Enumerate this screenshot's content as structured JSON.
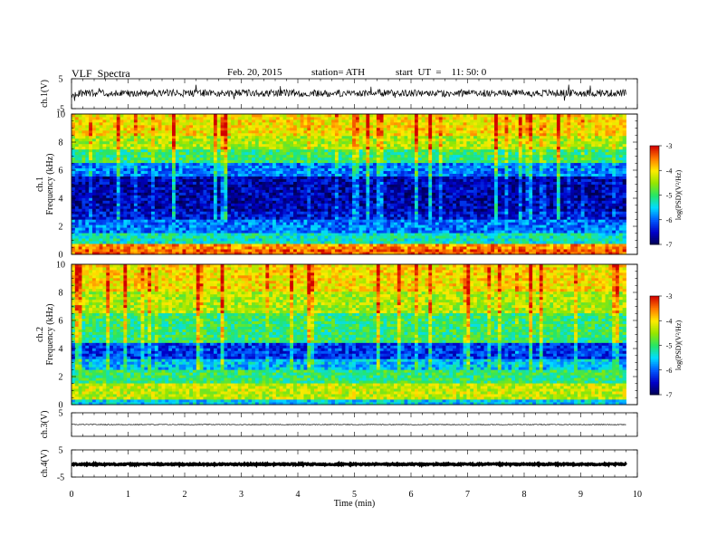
{
  "header": {
    "title": "VLF  Spectra",
    "date": "Feb. 20, 2015",
    "station": "station= ATH",
    "start": "start  UT  =    11: 50: 0"
  },
  "chart_data": [
    {
      "type": "line",
      "name": "ch1-waveform",
      "ylabel": "ch.1(V)",
      "ylim": [
        -5,
        5
      ],
      "y_ticks": [
        "5",
        "-5"
      ],
      "x_range_min": [
        0,
        9.8
      ],
      "baseline": 0.2,
      "amplitude": 1.2
    },
    {
      "type": "heatmap",
      "name": "ch1-spectrogram",
      "ylabel": "ch.1\nFrequency  (kHz)",
      "ylim": [
        0,
        10
      ],
      "y_ticks": [
        "0",
        "2",
        "4",
        "6",
        "8",
        "10"
      ],
      "x_range_min": [
        0,
        9.8
      ],
      "bands_khz": [
        {
          "from": 0.0,
          "to": 0.3,
          "level": -3.4
        },
        {
          "from": 0.3,
          "to": 0.8,
          "level": -3.6
        },
        {
          "from": 0.8,
          "to": 1.5,
          "level": -5.3
        },
        {
          "from": 1.5,
          "to": 2.5,
          "level": -5.9
        },
        {
          "from": 2.5,
          "to": 3.0,
          "level": -6.4
        },
        {
          "from": 3.0,
          "to": 5.5,
          "level": -6.6
        },
        {
          "from": 5.5,
          "to": 6.5,
          "level": -5.9
        },
        {
          "from": 6.5,
          "to": 7.5,
          "level": -5.0
        },
        {
          "from": 7.5,
          "to": 8.5,
          "level": -4.4
        },
        {
          "from": 8.5,
          "to": 10.0,
          "level": -4.0
        }
      ]
    },
    {
      "type": "heatmap",
      "name": "ch2-spectrogram",
      "ylabel": "ch.2\nFrequency  (kHz)",
      "ylim": [
        0,
        10
      ],
      "y_ticks": [
        "0",
        "2",
        "4",
        "6",
        "8",
        "10"
      ],
      "x_range_min": [
        0,
        9.8
      ],
      "bands_khz": [
        {
          "from": 0.0,
          "to": 0.3,
          "level": -5.5
        },
        {
          "from": 0.3,
          "to": 1.5,
          "level": -4.3
        },
        {
          "from": 1.5,
          "to": 2.5,
          "level": -5.0
        },
        {
          "from": 2.5,
          "to": 3.2,
          "level": -5.6
        },
        {
          "from": 3.2,
          "to": 4.5,
          "level": -6.2
        },
        {
          "from": 4.5,
          "to": 6.5,
          "level": -5.0
        },
        {
          "from": 6.5,
          "to": 8.0,
          "level": -4.4
        },
        {
          "from": 8.0,
          "to": 10.0,
          "level": -4.0
        }
      ]
    },
    {
      "type": "line",
      "name": "ch3-waveform",
      "ylabel": "ch.3(V)",
      "ylim": [
        -5,
        5
      ],
      "y_ticks": [
        "5"
      ],
      "x_range_min": [
        0,
        9.8
      ],
      "baseline": 0.0,
      "amplitude": 0.15
    },
    {
      "type": "line",
      "name": "ch4-waveform",
      "ylabel": "ch.4(V)",
      "ylim": [
        -5,
        5
      ],
      "y_ticks": [
        "5",
        "-5"
      ],
      "x_range_min": [
        0,
        9.8
      ],
      "baseline": -0.3,
      "amplitude": 0.25
    }
  ],
  "x_axis": {
    "label": "Time  (min)",
    "ticks": [
      "0",
      "1",
      "2",
      "3",
      "4",
      "5",
      "6",
      "7",
      "8",
      "9",
      "10"
    ],
    "xlim": [
      0,
      10
    ]
  },
  "colorbar": {
    "label": "log(PSD)(V²/Hz)",
    "ticks": [
      "-3",
      "-4",
      "-5",
      "-6",
      "-7"
    ],
    "range": [
      -7,
      -3
    ]
  }
}
